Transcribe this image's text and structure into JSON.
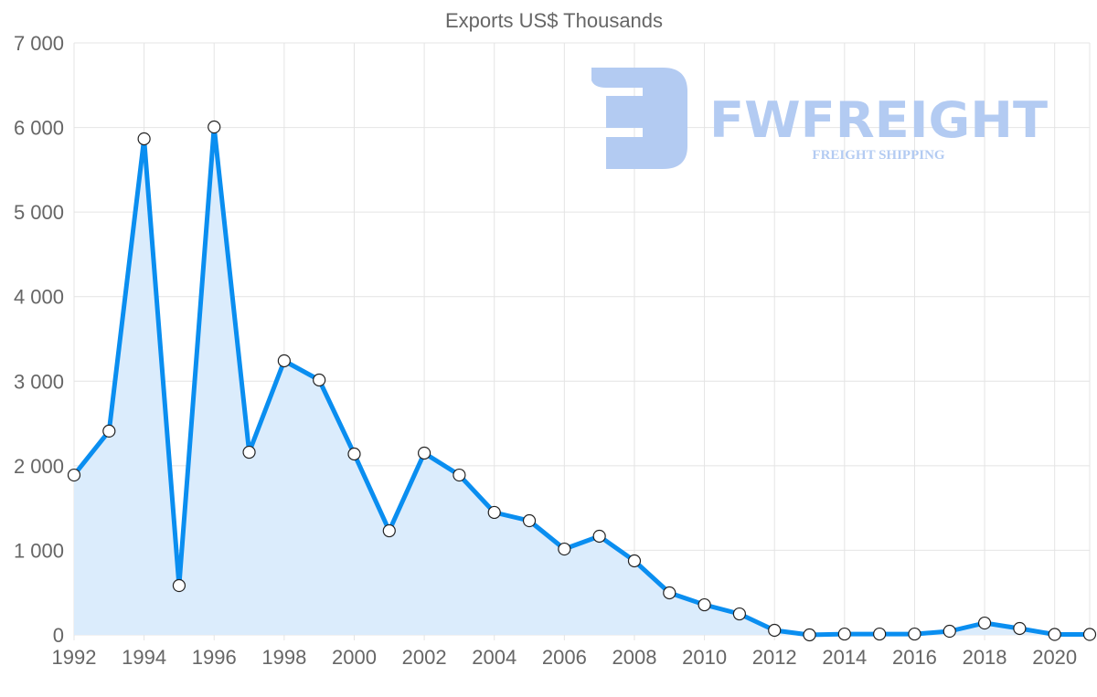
{
  "chart_data": {
    "type": "line",
    "title": "Exports US$ Thousands",
    "xlabel": "",
    "ylabel": "",
    "x": [
      1992,
      1993,
      1994,
      1995,
      1996,
      1997,
      1998,
      1999,
      2000,
      2001,
      2002,
      2003,
      2004,
      2005,
      2006,
      2007,
      2008,
      2009,
      2010,
      2011,
      2012,
      2013,
      2014,
      2015,
      2016,
      2017,
      2018,
      2019,
      2020,
      2021
    ],
    "series": [
      {
        "name": "Exports US$ Thousands",
        "values": [
          1890,
          2410,
          5866,
          583,
          6006,
          2160,
          3241,
          3014,
          2139,
          1231,
          2150,
          1890,
          1448,
          1350,
          1015,
          1167,
          875,
          497,
          356,
          248,
          54,
          0,
          10,
          10,
          10,
          43,
          140,
          76,
          5,
          5
        ]
      }
    ],
    "ylim": [
      0,
      7000
    ],
    "xlim": [
      1992,
      2021
    ],
    "yticks": [
      0,
      1000,
      2000,
      3000,
      4000,
      5000,
      6000,
      7000
    ],
    "ytick_labels": [
      "0",
      "1 000",
      "2 000",
      "3 000",
      "4 000",
      "5 000",
      "6 000",
      "7 000"
    ],
    "xticks": [
      1992,
      1994,
      1996,
      1998,
      2000,
      2002,
      2004,
      2006,
      2008,
      2010,
      2012,
      2014,
      2016,
      2018,
      2020
    ],
    "xtick_labels": [
      "1992",
      "1994",
      "1996",
      "1998",
      "2000",
      "2002",
      "2004",
      "2006",
      "2008",
      "2010",
      "2012",
      "2014",
      "2016",
      "2018",
      "2020"
    ],
    "grid": true,
    "legend": "none",
    "colors": {
      "line": "#0a8ef0",
      "fill": "#dbecfc",
      "grid": "#e4e4e4",
      "watermark": "#b3cbf2"
    }
  },
  "watermark": {
    "brand": "FWFREIGHT",
    "tagline": "FREIGHT SHIPPING"
  }
}
